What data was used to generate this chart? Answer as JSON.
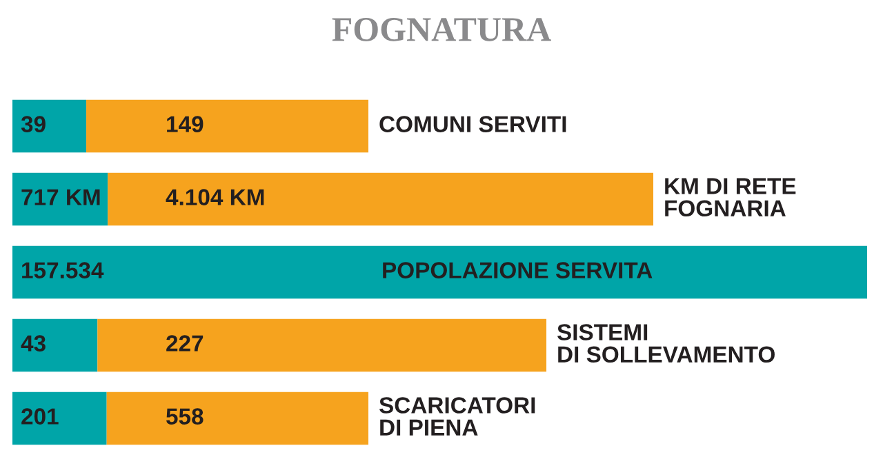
{
  "chart_data": [
    {
      "type": "bar",
      "title": "FOGNATURA",
      "orientation": "horizontal",
      "stacked": true,
      "tick_labels": false,
      "categories": [
        "COMUNI SERVITI"
      ],
      "series": [
        {
          "color": "#00a5a8",
          "values": [
            39
          ],
          "value_labels": [
            "39"
          ]
        },
        {
          "color": "#f6a31e",
          "values": [
            149
          ],
          "value_labels": [
            "149"
          ]
        }
      ]
    },
    {
      "type": "bar",
      "orientation": "horizontal",
      "stacked": true,
      "tick_labels": false,
      "categories": [
        "KM DI RETE\nFOGNARIA"
      ],
      "series": [
        {
          "color": "#00a5a8",
          "values": [
            717
          ],
          "value_labels": [
            "717 KM"
          ]
        },
        {
          "color": "#f6a31e",
          "values": [
            4104
          ],
          "value_labels": [
            "4.104 KM"
          ]
        }
      ]
    },
    {
      "type": "bar",
      "orientation": "horizontal",
      "stacked": true,
      "tick_labels": false,
      "categories": [
        "POPOLAZIONE SERVITA"
      ],
      "series": [
        {
          "color": "#00a5a8",
          "values": [
            157534
          ],
          "value_labels": [
            "157.534"
          ]
        }
      ]
    },
    {
      "type": "bar",
      "orientation": "horizontal",
      "stacked": true,
      "tick_labels": false,
      "categories": [
        "SISTEMI\nDI SOLLEVAMENTO"
      ],
      "series": [
        {
          "color": "#00a5a8",
          "values": [
            43
          ],
          "value_labels": [
            "43"
          ]
        },
        {
          "color": "#f6a31e",
          "values": [
            227
          ],
          "value_labels": [
            "227"
          ]
        }
      ]
    },
    {
      "type": "bar",
      "orientation": "horizontal",
      "stacked": true,
      "tick_labels": false,
      "categories": [
        "SCARICATORI\nDI PIENA"
      ],
      "series": [
        {
          "color": "#00a5a8",
          "values": [
            201
          ],
          "value_labels": [
            "201"
          ]
        },
        {
          "color": "#f6a31e",
          "values": [
            558
          ],
          "value_labels": [
            "558"
          ]
        }
      ]
    }
  ]
}
